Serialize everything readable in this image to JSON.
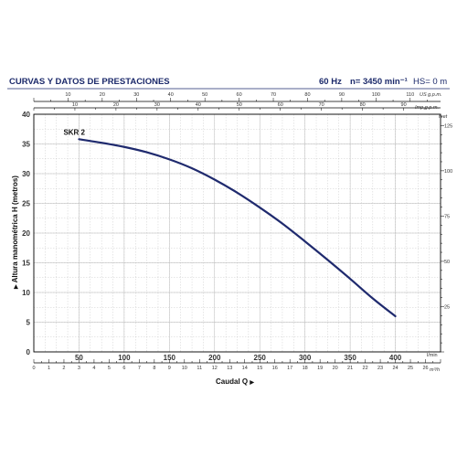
{
  "header": {
    "title": "CURVAS Y DATOS DE PRESTACIONES",
    "frequency": "60 Hz",
    "speed": "n= 3450 min⁻¹",
    "hs": "HS= 0 m"
  },
  "colors": {
    "title": "#1c2a6b",
    "curve": "#1f2a6e",
    "grid": "#b9b9b9",
    "axis": "#000000"
  },
  "chart_data": {
    "type": "line",
    "series_label": "SKR 2",
    "series": [
      {
        "name": "SKR 2",
        "x": [
          50,
          75,
          100,
          125,
          150,
          175,
          200,
          225,
          250,
          275,
          300,
          325,
          350,
          375,
          400
        ],
        "y": [
          35.8,
          35.2,
          34.5,
          33.6,
          32.4,
          30.9,
          29.0,
          26.8,
          24.3,
          21.6,
          18.6,
          15.5,
          12.3,
          9.0,
          6.0
        ]
      }
    ],
    "xlim": [
      0,
      450
    ],
    "ylim": [
      0,
      40
    ],
    "grid": true,
    "ylabel": "Altura manométrica H (metros)",
    "ylabel_arrow": "▶",
    "xlabel": "Caudal Q",
    "xlabel_arrow": "▶",
    "x_unit": "l/min",
    "x_ticks": [
      50,
      100,
      150,
      200,
      250,
      300,
      350,
      400
    ],
    "y_ticks": [
      0,
      5,
      10,
      15,
      20,
      25,
      30,
      35,
      40
    ],
    "top_axis": {
      "unit": "US g.p.m.",
      "unit2": "Imp g.p.m.",
      "us_gpm_labels": [
        10,
        20,
        30,
        40,
        50,
        60,
        70,
        80,
        90,
        100,
        110
      ],
      "imp_gpm_labels": [
        10,
        20,
        30,
        40,
        50,
        60,
        70,
        80,
        90
      ]
    },
    "right_axis": {
      "unit": "feet",
      "labels": [
        25,
        50,
        75,
        100,
        125
      ]
    },
    "bottom_axis_m3h": {
      "unit": "m³/h",
      "labels": [
        0,
        1,
        2,
        3,
        4,
        5,
        6,
        7,
        8,
        9,
        10,
        11,
        12,
        13,
        14,
        15,
        16,
        17,
        18,
        19,
        20,
        21,
        22,
        23,
        24,
        25,
        26
      ]
    }
  }
}
